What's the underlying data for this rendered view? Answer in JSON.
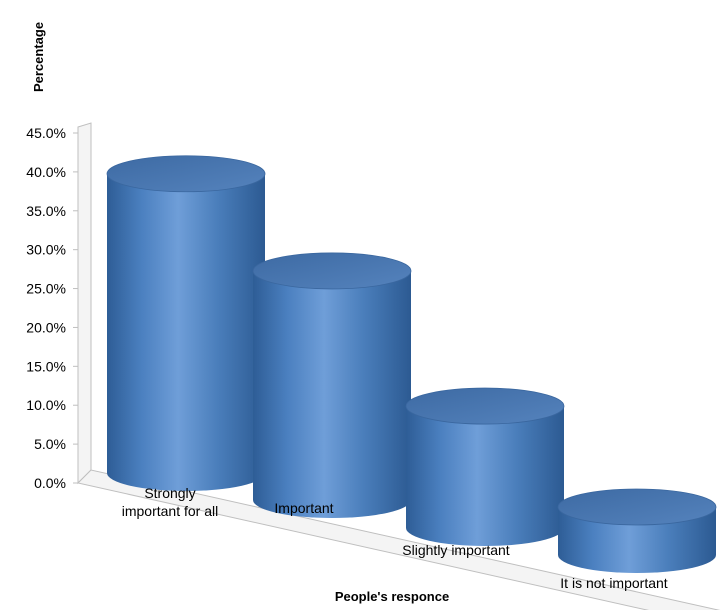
{
  "chart_data": {
    "type": "bar",
    "style": "3d-cylinder",
    "xlabel": "People's responce",
    "ylabel": "Percentage",
    "categories": [
      "Strongly important for all",
      "Important",
      "Slightly important",
      "It is not important"
    ],
    "category_lines": [
      [
        "Strongly",
        "important for all"
      ],
      [
        "Important"
      ],
      [
        "Slightly important"
      ],
      [
        "It is not important"
      ]
    ],
    "values": [
      40.5,
      31.0,
      16.5,
      6.5
    ],
    "ylim": [
      0,
      45
    ],
    "yticks": [
      "0.0%",
      "5.0%",
      "10.0%",
      "15.0%",
      "20.0%",
      "25.0%",
      "30.0%",
      "35.0%",
      "40.0%",
      "45.0%"
    ],
    "bar_color": "#4a7ebb",
    "grid": false,
    "legend": "none"
  }
}
